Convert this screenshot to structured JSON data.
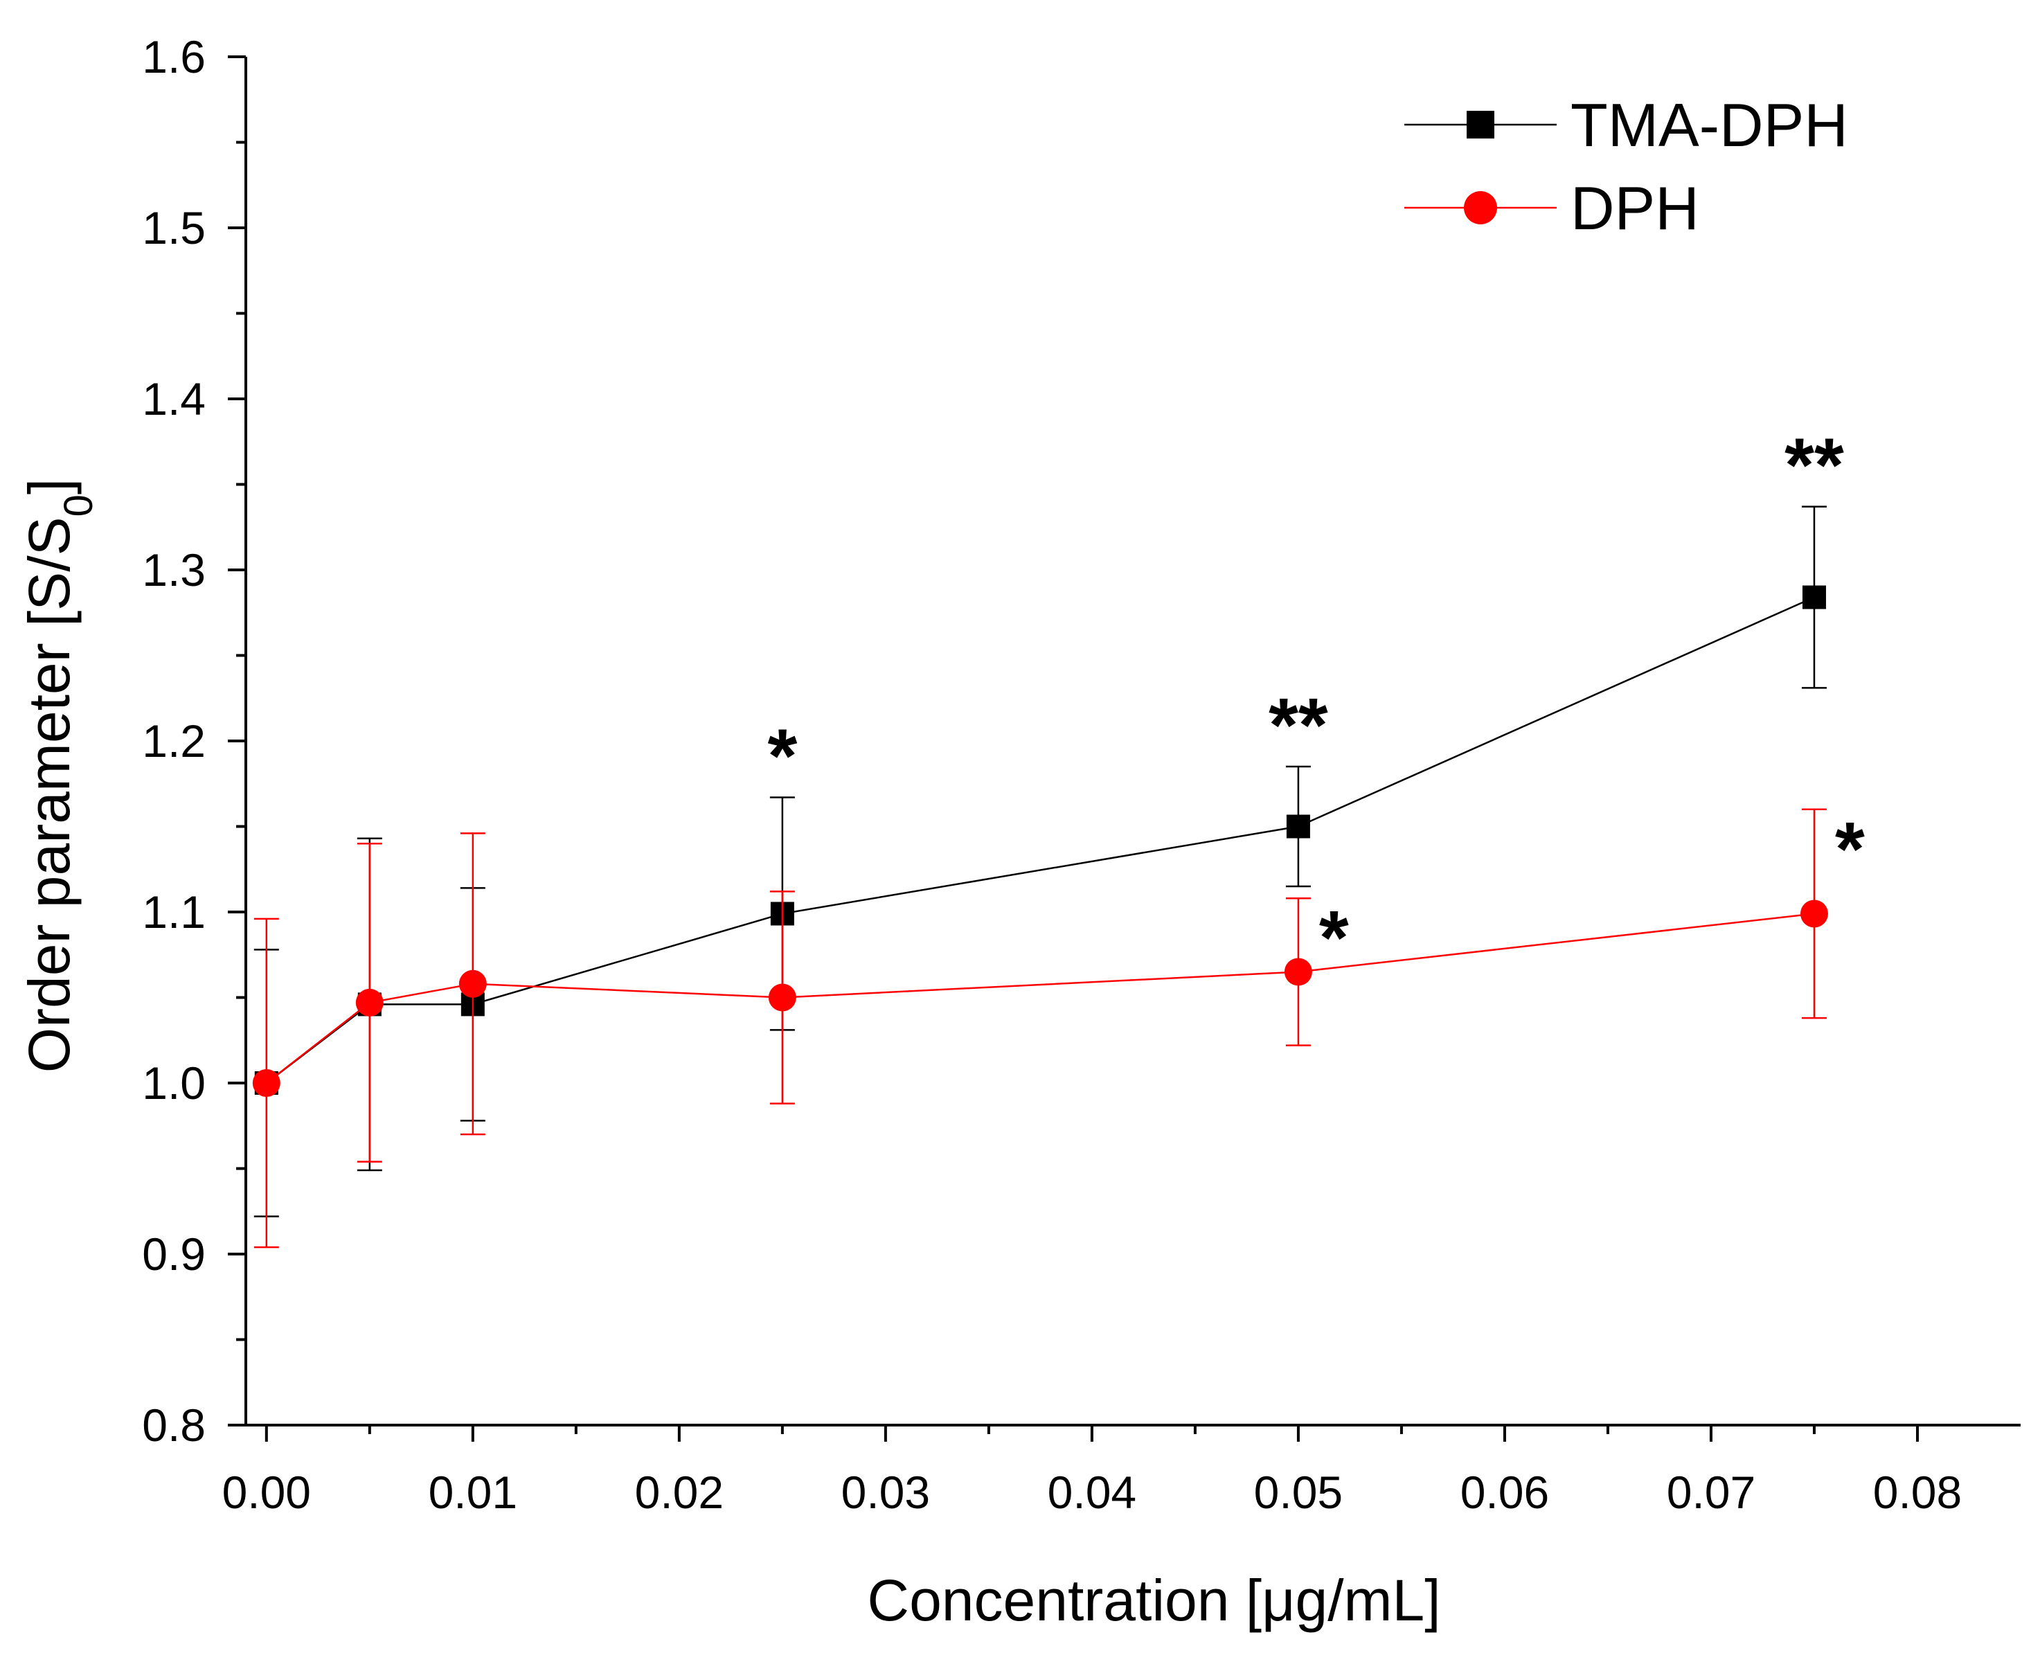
{
  "chart_data": {
    "type": "line",
    "title": "",
    "xlabel": "Concentration [μg/mL]",
    "ylabel_main": "Order parameter [S/S",
    "ylabel_sub": "0",
    "ylabel_end": "]",
    "xlim": [
      -0.001,
      0.085
    ],
    "ylim": [
      0.8,
      1.6
    ],
    "x_ticks": [
      0.0,
      0.01,
      0.02,
      0.03,
      0.04,
      0.05,
      0.06,
      0.07,
      0.08
    ],
    "x_tick_labels": [
      "0.00",
      "0.01",
      "0.02",
      "0.03",
      "0.04",
      "0.05",
      "0.06",
      "0.07",
      "0.08"
    ],
    "y_ticks": [
      0.8,
      0.9,
      1.0,
      1.1,
      1.2,
      1.3,
      1.4,
      1.5,
      1.6
    ],
    "y_tick_labels": [
      "0.8",
      "0.9",
      "1.0",
      "1.1",
      "1.2",
      "1.3",
      "1.4",
      "1.5",
      "1.6"
    ],
    "grid": false,
    "legend_position": "top-right",
    "series": [
      {
        "name": "TMA-DPH",
        "color": "#000000",
        "marker": "square",
        "x": [
          0.0,
          0.005,
          0.01,
          0.025,
          0.05,
          0.075
        ],
        "y": [
          1.0,
          1.046,
          1.046,
          1.099,
          1.15,
          1.284
        ],
        "err": [
          0.078,
          0.097,
          0.068,
          0.068,
          0.035,
          0.053
        ],
        "significance": [
          "",
          "",
          "",
          "*",
          "**",
          "**"
        ]
      },
      {
        "name": "DPH",
        "color": "#ff0000",
        "marker": "circle",
        "x": [
          0.0,
          0.005,
          0.01,
          0.025,
          0.05,
          0.075
        ],
        "y": [
          1.0,
          1.047,
          1.058,
          1.05,
          1.065,
          1.099
        ],
        "err": [
          0.096,
          0.093,
          0.088,
          0.062,
          0.043,
          0.061
        ],
        "significance": [
          "",
          "",
          "",
          "",
          "*",
          "*"
        ]
      }
    ]
  }
}
